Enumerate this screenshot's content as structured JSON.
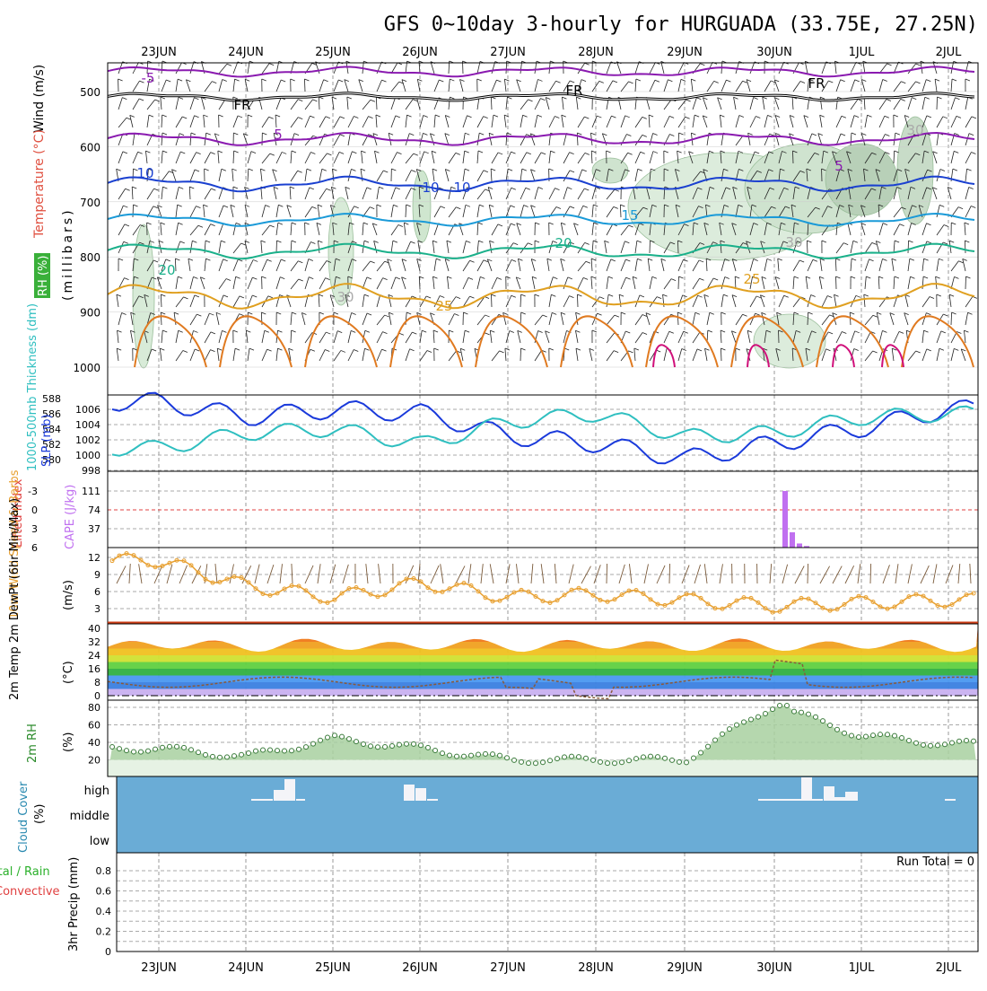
{
  "title": "GFS 0~10day 3-hourly for HURGUADA (33.75E, 27.25N)",
  "dates": [
    "23JUN",
    "24JUN",
    "25JUN",
    "26JUN",
    "27JUN",
    "28JUN",
    "29JUN",
    "30JUN",
    "1JUL",
    "2JUL"
  ],
  "panels": {
    "upper": {
      "labels": [
        "Wind (m/s)",
        "Temperature (°C)",
        "RH (%)"
      ],
      "unit_label": "(millibars)",
      "yticks": [
        "500",
        "600",
        "700",
        "800",
        "900",
        "1000"
      ],
      "contour_labels": [
        "-5",
        "FR",
        "FR",
        "FR",
        "5",
        "5",
        "10",
        "10",
        "10",
        "15",
        "20",
        "20",
        "25",
        "25",
        "30",
        "30",
        "30"
      ]
    },
    "slp": {
      "label_left": "1000-500mb Thickness (dm)",
      "label_right": "SLP (mb)",
      "yticks_thick": [
        "588",
        "586",
        "584",
        "582",
        "580"
      ],
      "yticks_slp": [
        "1006",
        "1004",
        "1002",
        "1000",
        "998"
      ]
    },
    "cape": {
      "label_left": "Lifted Index",
      "label_right": "CAPE (J/kg)",
      "yticks_li": [
        "-3",
        "0",
        "3",
        "6"
      ],
      "yticks_cape": [
        "111",
        "74",
        "37"
      ]
    },
    "wind": {
      "label": "10m Wind Speed & Barbs",
      "unit": "(m/s)",
      "yticks": [
        "12",
        "9",
        "6",
        "3"
      ]
    },
    "temp": {
      "label": "2m Temp 2m DewPt (6hr Min/Max)",
      "unit": "(°C)",
      "yticks": [
        "40",
        "32",
        "24",
        "16",
        "8",
        "0"
      ]
    },
    "rh": {
      "label": "2m RH",
      "unit": "(%)",
      "yticks": [
        "80",
        "60",
        "40",
        "20"
      ]
    },
    "cloud": {
      "label": "Cloud Cover",
      "unit": "(%)",
      "levels": [
        "high",
        "middle",
        "low"
      ]
    },
    "precip": {
      "label_total": "Total / Rain",
      "label_conv": "Convective",
      "unit": "3hr Precip (mm)",
      "yticks": [
        "0.8",
        "0.6",
        "0.4",
        "0.2",
        "0"
      ],
      "run_total": "Run Total = 0"
    }
  },
  "colors": {
    "slp": "#1a3adb",
    "thickness": "#2fbfc0",
    "cape": "#c070f0",
    "wind_speed": "#e8a030",
    "rh_fill": "#5aa55a",
    "cloud_bg": "#6aacd6",
    "temp_red": "#d03010",
    "dewpoint": "#8a5a3a"
  },
  "chart_data": [
    {
      "type": "line",
      "title": "SLP (mb)",
      "x": [
        "23JUN",
        "24JUN",
        "25JUN",
        "26JUN",
        "27JUN",
        "28JUN",
        "29JUN",
        "30JUN",
        "1JUL",
        "2JUL"
      ],
      "series": [
        {
          "name": "SLP (mb)",
          "values": [
            1007.0,
            1005.0,
            1006.0,
            1005.5,
            1002.5,
            1001.5,
            999.5,
            1001.5,
            1003.5,
            1006.0
          ]
        },
        {
          "name": "1000-500mb Thickness (dm)",
          "values": [
            581.5,
            583.5,
            584.0,
            582.0,
            585.0,
            586.0,
            583.0,
            583.5,
            585.5,
            586.0
          ]
        }
      ]
    },
    {
      "type": "bar",
      "title": "CAPE (J/kg)",
      "categories": [
        "30JUN 00",
        "30JUN 03",
        "30JUN 06",
        "30JUN 09"
      ],
      "values": [
        111,
        30,
        8,
        3
      ]
    },
    {
      "type": "line",
      "title": "10m Wind Speed & Barbs",
      "x": [
        "23JUN",
        "24JUN",
        "25JUN",
        "26JUN",
        "27JUN",
        "28JUN",
        "29JUN",
        "30JUN",
        "1JUL",
        "2JUL"
      ],
      "series": [
        {
          "name": "Speed",
          "values": [
            11.5,
            7.0,
            5.0,
            7.5,
            5.0,
            5.5,
            4.5,
            3.5,
            4.0,
            4.5
          ]
        }
      ]
    },
    {
      "type": "line",
      "title": "2m RH",
      "x": [
        "23JUN",
        "24JUN",
        "25JUN",
        "26JUN",
        "27JUN",
        "28JUN",
        "29JUN",
        "30JUN",
        "1JUL",
        "2JUL"
      ],
      "series": [
        {
          "name": "2m RH",
          "values": [
            33,
            24,
            44,
            33,
            20,
            20,
            20,
            82,
            48,
            38
          ]
        }
      ]
    }
  ]
}
